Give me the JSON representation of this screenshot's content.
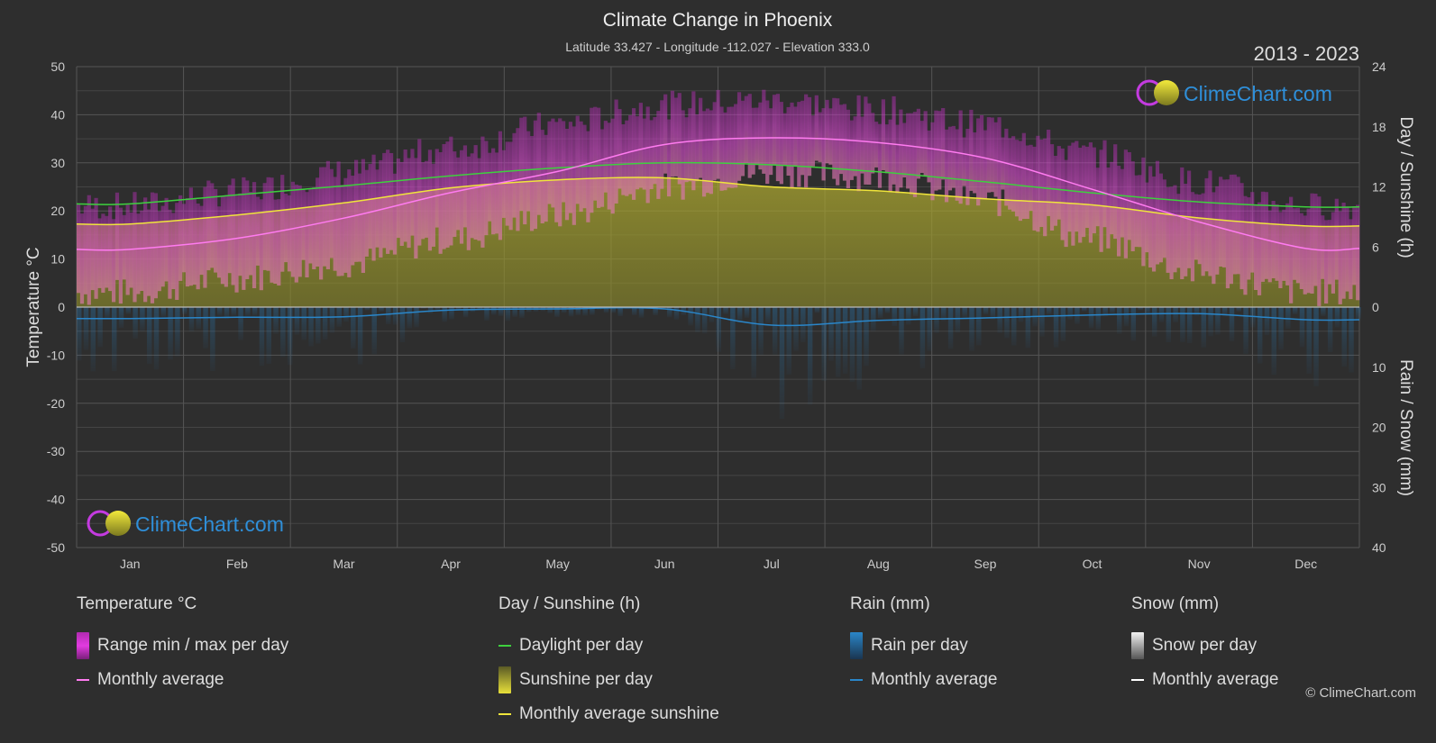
{
  "header": {
    "title": "Climate Change in Phoenix",
    "subtitle": "Latitude 33.427 - Longitude -112.027 - Elevation 333.0",
    "years": "2013 - 2023"
  },
  "brand": {
    "name": "ClimeChart.com",
    "copyright": "© ClimeChart.com"
  },
  "colors": {
    "background": "#2e2e2e",
    "temp_range": "#d52fd0",
    "temp_avg": "#ff7bf0",
    "sunshine_fill": "#b9b43a",
    "sunshine_avg": "#f0e53b",
    "daylight": "#3ed03e",
    "rain": "#2a86c9",
    "snow": "#ffffff",
    "brand_text": "#2f8fd9"
  },
  "chart_data": {
    "type": "area",
    "categories": [
      "Jan",
      "Feb",
      "Mar",
      "Apr",
      "May",
      "Jun",
      "Jul",
      "Aug",
      "Sep",
      "Oct",
      "Nov",
      "Dec"
    ],
    "axes": {
      "left": {
        "label": "Temperature °C",
        "min": -50,
        "max": 50,
        "ticks": [
          50,
          40,
          30,
          20,
          10,
          0,
          -10,
          -20,
          -30,
          -40,
          -50
        ]
      },
      "right_top": {
        "label": "Day / Sunshine (h)",
        "min": 0,
        "max": 24,
        "ticks": [
          24,
          18,
          12,
          6,
          0
        ]
      },
      "right_bottom": {
        "label": "Rain / Snow (mm)",
        "min": 0,
        "max": 40,
        "ticks": [
          0,
          10,
          20,
          30,
          40
        ]
      }
    },
    "grid": true,
    "series": [
      {
        "name": "Range min / max per day",
        "unit": "°C",
        "min": [
          3,
          6,
          9,
          14,
          19,
          25,
          28,
          27,
          22,
          14,
          7,
          3
        ],
        "max": [
          21,
          24,
          28,
          33,
          38,
          42,
          43,
          41,
          38,
          32,
          26,
          21
        ]
      },
      {
        "name": "Monthly average",
        "unit": "°C",
        "values": [
          12,
          14.3,
          18.5,
          23.8,
          28.2,
          33.8,
          35.2,
          34.2,
          31,
          24.5,
          17.7,
          12.2
        ]
      },
      {
        "name": "Daylight per day",
        "unit": "h",
        "values": [
          10.3,
          11.2,
          12.1,
          13.1,
          13.9,
          14.4,
          14.2,
          13.5,
          12.5,
          11.4,
          10.5,
          10.0
        ]
      },
      {
        "name": "Sunshine per day",
        "unit": "h",
        "values": [
          8.3,
          9.2,
          10.4,
          11.9,
          12.7,
          12.9,
          12.0,
          11.6,
          10.8,
          10.2,
          8.9,
          8.1
        ]
      },
      {
        "name": "Monthly average sunshine",
        "unit": "h",
        "values": [
          8.3,
          9.2,
          10.4,
          11.9,
          12.7,
          12.9,
          12.0,
          11.6,
          10.8,
          10.2,
          8.9,
          8.1
        ]
      },
      {
        "name": "Rain per day",
        "unit": "mm",
        "values": [
          1.9,
          1.7,
          1.6,
          0.5,
          0.3,
          0.3,
          3.0,
          2.2,
          1.8,
          1.3,
          1.1,
          2.1
        ]
      },
      {
        "name": "Monthly average",
        "unit": "mm",
        "values": [
          1.9,
          1.7,
          1.6,
          0.5,
          0.3,
          0.3,
          3.0,
          2.2,
          1.8,
          1.3,
          1.1,
          2.1
        ]
      },
      {
        "name": "Snow per day",
        "unit": "mm",
        "values": [
          0,
          0,
          0,
          0,
          0,
          0,
          0,
          0,
          0,
          0,
          0,
          0
        ]
      },
      {
        "name": "Monthly average",
        "unit": "mm",
        "values": [
          0,
          0,
          0,
          0,
          0,
          0,
          0,
          0,
          0,
          0,
          0,
          0
        ]
      }
    ]
  },
  "legend": [
    {
      "heading": "Temperature °C",
      "items": [
        {
          "label": "Range min / max per day",
          "kind": "box",
          "color": "#e23be0"
        },
        {
          "label": "Monthly average",
          "kind": "line",
          "color": "#ff7bf0"
        }
      ]
    },
    {
      "heading": "Day / Sunshine (h)",
      "items": [
        {
          "label": "Daylight per day",
          "kind": "line",
          "color": "#3ed03e"
        },
        {
          "label": "Sunshine per day",
          "kind": "box",
          "color": "#d8d23a"
        },
        {
          "label": "Monthly average sunshine",
          "kind": "line",
          "color": "#f0e53b"
        }
      ]
    },
    {
      "heading": "Rain (mm)",
      "items": [
        {
          "label": "Rain per day",
          "kind": "box",
          "color": "#2a86c9"
        },
        {
          "label": "Monthly average",
          "kind": "line",
          "color": "#2a86c9"
        }
      ]
    },
    {
      "heading": "Snow (mm)",
      "items": [
        {
          "label": "Snow per day",
          "kind": "box",
          "color": "#e8e8e8"
        },
        {
          "label": "Monthly average",
          "kind": "line",
          "color": "#ffffff"
        }
      ]
    }
  ]
}
